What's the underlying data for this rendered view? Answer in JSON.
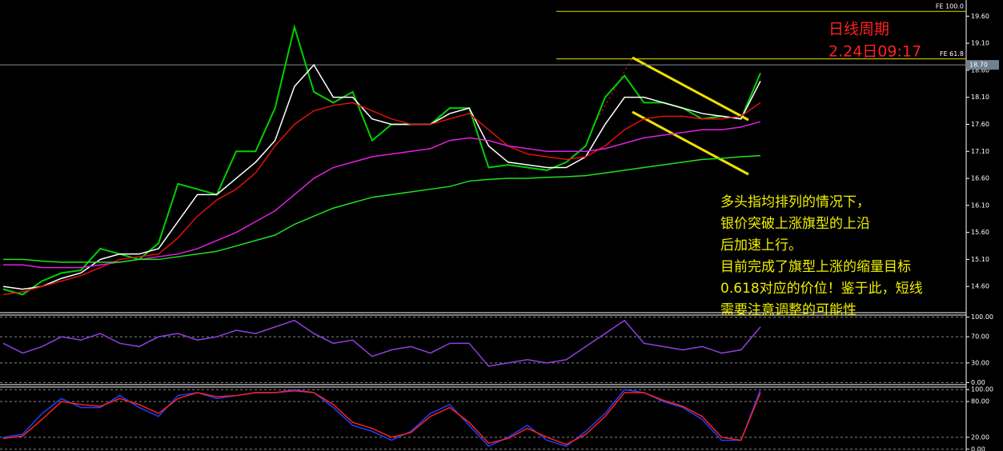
{
  "chart_data": [
    {
      "type": "line",
      "annotations": [
        "日线周期",
        "2.24日09:17"
      ],
      "note": [
        "多头指均排列的情况下，",
        "银价突破上涨旗型的上沿",
        "后加速上行。",
        "目前完成了旗型上涨的缩量目标",
        "0.618对应的价位！鉴于此，短线",
        "需要注意调整的可能性"
      ],
      "hlines": [
        {
          "value": 19.69,
          "label": "FE 100.0",
          "color": "#e0e000"
        },
        {
          "value": 18.81,
          "label": "FE 61.8",
          "color": "#e0e000"
        }
      ],
      "last_price": {
        "value": 18.7,
        "label": "18.70"
      },
      "ylim": [
        14.13,
        19.9
      ],
      "yticks": [
        {
          "value": 19.6,
          "label": "19.60"
        },
        {
          "value": 19.1,
          "label": "19.10"
        },
        {
          "value": 18.6,
          "label": "18.60"
        },
        {
          "value": 18.1,
          "label": "18.10"
        },
        {
          "value": 17.6,
          "label": "17.60"
        },
        {
          "value": 17.1,
          "label": "17.10"
        },
        {
          "value": 16.6,
          "label": "16.60"
        },
        {
          "value": 16.1,
          "label": "16.10"
        },
        {
          "value": 15.6,
          "label": "15.60"
        },
        {
          "value": 15.1,
          "label": "15.10"
        },
        {
          "value": 14.6,
          "label": "14.60"
        }
      ],
      "series": [
        {
          "color": "#00d000",
          "values": [
            14.55,
            14.45,
            14.7,
            14.85,
            14.9,
            15.3,
            15.2,
            15.1,
            15.4,
            16.5,
            16.4,
            16.3,
            17.1,
            17.1,
            17.9,
            19.4,
            18.2,
            18.0,
            18.2,
            17.3,
            17.6,
            17.6,
            17.6,
            17.9,
            17.9,
            16.8,
            16.85,
            16.8,
            16.75,
            16.9,
            17.2,
            18.1,
            18.5,
            18.0,
            18.0,
            17.9,
            17.7,
            17.75,
            17.7,
            18.55
          ]
        },
        {
          "color": "#ffffff",
          "values": [
            14.6,
            14.55,
            14.6,
            14.75,
            14.85,
            15.1,
            15.2,
            15.2,
            15.3,
            15.8,
            16.3,
            16.3,
            16.6,
            16.9,
            17.3,
            18.3,
            18.7,
            18.1,
            18.1,
            17.7,
            17.6,
            17.6,
            17.6,
            17.8,
            17.9,
            17.2,
            16.9,
            16.85,
            16.8,
            16.8,
            17.0,
            17.6,
            18.1,
            18.1,
            18.0,
            17.9,
            17.8,
            17.75,
            17.7,
            18.4
          ]
        },
        {
          "color": "#e01010",
          "values": [
            14.45,
            14.5,
            14.6,
            14.7,
            14.8,
            14.95,
            15.1,
            15.15,
            15.2,
            15.5,
            15.9,
            16.2,
            16.4,
            16.7,
            17.2,
            17.6,
            17.85,
            17.95,
            18.0,
            17.85,
            17.7,
            17.6,
            17.6,
            17.7,
            17.8,
            17.5,
            17.2,
            17.05,
            17.0,
            16.95,
            17.0,
            17.2,
            17.5,
            17.7,
            17.75,
            17.75,
            17.7,
            17.7,
            17.75,
            18.0
          ]
        },
        {
          "color": "#e020e0",
          "values": [
            15.0,
            15.0,
            14.95,
            14.95,
            14.95,
            15.0,
            15.05,
            15.1,
            15.15,
            15.2,
            15.3,
            15.45,
            15.6,
            15.8,
            16.0,
            16.3,
            16.6,
            16.8,
            16.9,
            17.0,
            17.05,
            17.1,
            17.15,
            17.3,
            17.35,
            17.3,
            17.2,
            17.15,
            17.1,
            17.1,
            17.1,
            17.15,
            17.25,
            17.35,
            17.4,
            17.45,
            17.5,
            17.5,
            17.55,
            17.65
          ]
        },
        {
          "color": "#20e020",
          "values": [
            15.1,
            15.1,
            15.07,
            15.05,
            15.05,
            15.05,
            15.05,
            15.1,
            15.1,
            15.15,
            15.2,
            15.25,
            15.35,
            15.45,
            15.55,
            15.75,
            15.9,
            16.05,
            16.15,
            16.25,
            16.3,
            16.35,
            16.4,
            16.45,
            16.55,
            16.58,
            16.6,
            16.6,
            16.62,
            16.63,
            16.65,
            16.7,
            16.75,
            16.8,
            16.85,
            16.9,
            16.95,
            16.97,
            17.0,
            17.02
          ]
        }
      ]
    },
    {
      "type": "line",
      "ylim": [
        -2,
        102
      ],
      "yticks": [
        {
          "value": 100,
          "label": "100.00"
        },
        {
          "value": 70,
          "label": "70.00"
        },
        {
          "value": 30,
          "label": "30.00"
        },
        {
          "value": 0,
          "label": "0.00"
        }
      ],
      "series": [
        {
          "color": "#9040e0",
          "values": [
            60,
            45,
            55,
            70,
            65,
            75,
            60,
            55,
            70,
            75,
            65,
            70,
            80,
            75,
            85,
            95,
            75,
            60,
            65,
            40,
            50,
            55,
            45,
            60,
            60,
            25,
            30,
            35,
            30,
            35,
            55,
            75,
            95,
            60,
            55,
            50,
            55,
            45,
            50,
            85
          ]
        }
      ]
    },
    {
      "type": "line",
      "ylim": [
        -3,
        103
      ],
      "yticks": [
        {
          "value": 100,
          "label": "100.00"
        },
        {
          "value": 80,
          "label": "80.00"
        },
        {
          "value": 20,
          "label": "20.00"
        },
        {
          "value": 0,
          "label": "0.00"
        }
      ],
      "series": [
        {
          "color": "#2040ff",
          "values": [
            20,
            25,
            60,
            85,
            70,
            70,
            90,
            70,
            55,
            90,
            95,
            85,
            90,
            95,
            95,
            100,
            95,
            70,
            40,
            30,
            15,
            30,
            60,
            75,
            40,
            5,
            20,
            40,
            15,
            5,
            30,
            60,
            100,
            95,
            80,
            70,
            50,
            15,
            15,
            100
          ]
        },
        {
          "color": "#ff2020",
          "values": [
            18,
            22,
            50,
            80,
            75,
            72,
            85,
            75,
            60,
            85,
            95,
            88,
            90,
            95,
            95,
            98,
            95,
            75,
            45,
            35,
            20,
            28,
            55,
            70,
            45,
            10,
            18,
            35,
            20,
            8,
            25,
            55,
            95,
            95,
            82,
            72,
            55,
            20,
            15,
            95
          ]
        }
      ]
    }
  ]
}
